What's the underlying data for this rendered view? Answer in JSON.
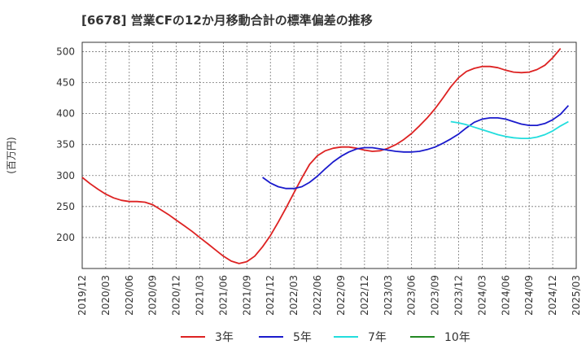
{
  "chart_data": {
    "type": "line",
    "title": "[6678]  営業CFの12か月移動合計の標準偏差の推移",
    "ylabel": "(百万円)",
    "xlabel": "",
    "ylim": [
      150,
      515
    ],
    "yticks": [
      200,
      250,
      300,
      350,
      400,
      450,
      500
    ],
    "x_range": [
      "2019-12",
      "2025-03"
    ],
    "xticks": [
      "2019/12",
      "2020/03",
      "2020/06",
      "2020/09",
      "2020/12",
      "2021/03",
      "2021/06",
      "2021/09",
      "2021/12",
      "2022/03",
      "2022/06",
      "2022/09",
      "2022/12",
      "2023/03",
      "2023/06",
      "2023/09",
      "2023/12",
      "2024/03",
      "2024/06",
      "2024/09",
      "2024/12",
      "2025/03"
    ],
    "grid": true,
    "legend_position": "bottom",
    "series": [
      {
        "name": "3年",
        "color": "#dd2222",
        "points": [
          [
            "2019-12",
            297
          ],
          [
            "2020-01",
            287
          ],
          [
            "2020-02",
            278
          ],
          [
            "2020-03",
            270
          ],
          [
            "2020-04",
            264
          ],
          [
            "2020-05",
            260
          ],
          [
            "2020-06",
            258
          ],
          [
            "2020-07",
            258
          ],
          [
            "2020-08",
            257
          ],
          [
            "2020-09",
            253
          ],
          [
            "2020-10",
            245
          ],
          [
            "2020-11",
            237
          ],
          [
            "2020-12",
            228
          ],
          [
            "2021-01",
            219
          ],
          [
            "2021-02",
            210
          ],
          [
            "2021-03",
            200
          ],
          [
            "2021-04",
            190
          ],
          [
            "2021-05",
            180
          ],
          [
            "2021-06",
            170
          ],
          [
            "2021-07",
            162
          ],
          [
            "2021-08",
            158
          ],
          [
            "2021-09",
            161
          ],
          [
            "2021-10",
            170
          ],
          [
            "2021-11",
            185
          ],
          [
            "2021-12",
            203
          ],
          [
            "2022-01",
            225
          ],
          [
            "2022-02",
            248
          ],
          [
            "2022-03",
            272
          ],
          [
            "2022-04",
            296
          ],
          [
            "2022-05",
            318
          ],
          [
            "2022-06",
            332
          ],
          [
            "2022-07",
            340
          ],
          [
            "2022-08",
            344
          ],
          [
            "2022-09",
            346
          ],
          [
            "2022-10",
            346
          ],
          [
            "2022-11",
            344
          ],
          [
            "2022-12",
            341
          ],
          [
            "2023-01",
            339
          ],
          [
            "2023-02",
            340
          ],
          [
            "2023-03",
            344
          ],
          [
            "2023-04",
            350
          ],
          [
            "2023-05",
            358
          ],
          [
            "2023-06",
            368
          ],
          [
            "2023-07",
            380
          ],
          [
            "2023-08",
            393
          ],
          [
            "2023-09",
            408
          ],
          [
            "2023-10",
            425
          ],
          [
            "2023-11",
            443
          ],
          [
            "2023-12",
            458
          ],
          [
            "2024-01",
            468
          ],
          [
            "2024-02",
            473
          ],
          [
            "2024-03",
            476
          ],
          [
            "2024-04",
            476
          ],
          [
            "2024-05",
            474
          ],
          [
            "2024-06",
            470
          ],
          [
            "2024-07",
            467
          ],
          [
            "2024-08",
            466
          ],
          [
            "2024-09",
            467
          ],
          [
            "2024-10",
            471
          ],
          [
            "2024-11",
            478
          ],
          [
            "2024-12",
            490
          ],
          [
            "2025-01",
            505
          ]
        ]
      },
      {
        "name": "5年",
        "color": "#1a1acc",
        "points": [
          [
            "2021-11",
            297
          ],
          [
            "2021-12",
            288
          ],
          [
            "2022-01",
            282
          ],
          [
            "2022-02",
            279
          ],
          [
            "2022-03",
            279
          ],
          [
            "2022-04",
            282
          ],
          [
            "2022-05",
            289
          ],
          [
            "2022-06",
            299
          ],
          [
            "2022-07",
            311
          ],
          [
            "2022-08",
            322
          ],
          [
            "2022-09",
            331
          ],
          [
            "2022-10",
            338
          ],
          [
            "2022-11",
            343
          ],
          [
            "2022-12",
            345
          ],
          [
            "2023-01",
            345
          ],
          [
            "2023-02",
            343
          ],
          [
            "2023-03",
            341
          ],
          [
            "2023-04",
            339
          ],
          [
            "2023-05",
            338
          ],
          [
            "2023-06",
            338
          ],
          [
            "2023-07",
            339
          ],
          [
            "2023-08",
            342
          ],
          [
            "2023-09",
            346
          ],
          [
            "2023-10",
            352
          ],
          [
            "2023-11",
            359
          ],
          [
            "2023-12",
            367
          ],
          [
            "2024-01",
            377
          ],
          [
            "2024-02",
            386
          ],
          [
            "2024-03",
            391
          ],
          [
            "2024-04",
            393
          ],
          [
            "2024-05",
            393
          ],
          [
            "2024-06",
            391
          ],
          [
            "2024-07",
            387
          ],
          [
            "2024-08",
            383
          ],
          [
            "2024-09",
            381
          ],
          [
            "2024-10",
            381
          ],
          [
            "2024-11",
            384
          ],
          [
            "2024-12",
            390
          ],
          [
            "2025-01",
            399
          ],
          [
            "2025-02",
            413
          ]
        ]
      },
      {
        "name": "7年",
        "color": "#22dddd",
        "points": [
          [
            "2023-11",
            387
          ],
          [
            "2023-12",
            385
          ],
          [
            "2024-01",
            382
          ],
          [
            "2024-02",
            378
          ],
          [
            "2024-03",
            374
          ],
          [
            "2024-04",
            370
          ],
          [
            "2024-05",
            366
          ],
          [
            "2024-06",
            363
          ],
          [
            "2024-07",
            361
          ],
          [
            "2024-08",
            360
          ],
          [
            "2024-09",
            360
          ],
          [
            "2024-10",
            362
          ],
          [
            "2024-11",
            366
          ],
          [
            "2024-12",
            372
          ],
          [
            "2025-01",
            380
          ],
          [
            "2025-02",
            387
          ]
        ]
      },
      {
        "name": "10年",
        "color": "#228822",
        "points": []
      }
    ]
  }
}
